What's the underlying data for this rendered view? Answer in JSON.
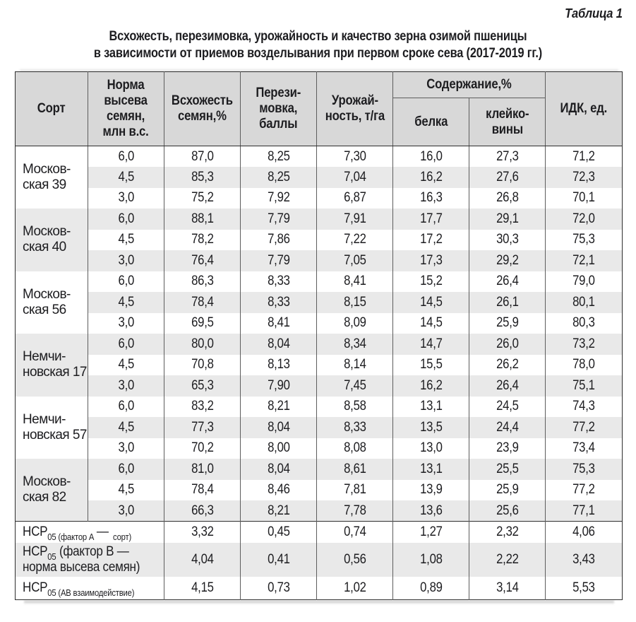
{
  "page": {
    "table_label": "Таблица 1",
    "title": "Всхожесть, перезимовка, урожайность и качество зерна озимой пшеницы\nв зависимости от приемов возделывания при первом сроке сева (2017-2019 гг.)"
  },
  "table": {
    "headers": {
      "variety": "Сорт",
      "seeding_rate": "Норма\nвысева\nсемян,\nмлн в.с.",
      "germination": "Всхожесть\nсемян,%",
      "overwintering": "Перези-\nмовка,\nбаллы",
      "yield": "Урожай-\nность, т/га",
      "content": "Содержание,%",
      "protein": "белка",
      "gluten": "клейко-\nвины",
      "idk": "ИДК, ед."
    },
    "groups": [
      {
        "variety": "Москов-\nская 39",
        "rows": [
          {
            "rate": "6,0",
            "values": [
              "87,0",
              "8,25",
              "7,30",
              "16,0",
              "27,3",
              "71,2"
            ]
          },
          {
            "rate": "4,5",
            "values": [
              "85,3",
              "8,25",
              "7,04",
              "16,2",
              "27,6",
              "72,3"
            ]
          },
          {
            "rate": "3,0",
            "values": [
              "75,2",
              "7,92",
              "6,87",
              "16,3",
              "26,8",
              "70,1"
            ]
          }
        ]
      },
      {
        "variety": "Москов-\nская 40",
        "rows": [
          {
            "rate": "6,0",
            "values": [
              "88,1",
              "7,79",
              "7,91",
              "17,7",
              "29,1",
              "72,0"
            ]
          },
          {
            "rate": "4,5",
            "values": [
              "78,2",
              "7,86",
              "7,22",
              "17,2",
              "30,3",
              "75,3"
            ]
          },
          {
            "rate": "3,0",
            "values": [
              "76,4",
              "7,79",
              "7,05",
              "17,3",
              "29,2",
              "72,1"
            ]
          }
        ]
      },
      {
        "variety": "Москов-\nская 56",
        "rows": [
          {
            "rate": "6,0",
            "values": [
              "86,3",
              "8,33",
              "8,41",
              "15,2",
              "26,4",
              "79,0"
            ]
          },
          {
            "rate": "4,5",
            "values": [
              "78,4",
              "8,33",
              "8,15",
              "14,5",
              "26,1",
              "80,1"
            ]
          },
          {
            "rate": "3,0",
            "values": [
              "69,5",
              "8,41",
              "8,09",
              "14,5",
              "25,9",
              "80,3"
            ]
          }
        ]
      },
      {
        "variety": "Немчи-\nновская 17",
        "rows": [
          {
            "rate": "6,0",
            "values": [
              "80,0",
              "8,04",
              "8,34",
              "14,7",
              "26,0",
              "73,2"
            ]
          },
          {
            "rate": "4,5",
            "values": [
              "70,8",
              "8,13",
              "8,14",
              "15,5",
              "26,2",
              "78,0"
            ]
          },
          {
            "rate": "3,0",
            "values": [
              "65,3",
              "7,90",
              "7,45",
              "16,2",
              "26,4",
              "75,1"
            ]
          }
        ]
      },
      {
        "variety": "Немчи-\nновская 57",
        "rows": [
          {
            "rate": "6,0",
            "values": [
              "83,2",
              "8,21",
              "8,58",
              "13,1",
              "24,5",
              "74,3"
            ]
          },
          {
            "rate": "4,5",
            "values": [
              "77,3",
              "8,04",
              "8,33",
              "13,5",
              "24,4",
              "77,2"
            ]
          },
          {
            "rate": "3,0",
            "values": [
              "70,2",
              "8,00",
              "8,08",
              "13,0",
              "23,9",
              "73,4"
            ]
          }
        ]
      },
      {
        "variety": "Москов-\nская 82",
        "rows": [
          {
            "rate": "6,0",
            "values": [
              "81,0",
              "8,04",
              "8,61",
              "13,1",
              "25,5",
              "75,3"
            ]
          },
          {
            "rate": "4,5",
            "values": [
              "78,4",
              "8,46",
              "7,81",
              "13,9",
              "25,9",
              "77,2"
            ]
          },
          {
            "rate": "3,0",
            "values": [
              "66,3",
              "8,21",
              "7,78",
              "13,6",
              "25,6",
              "77,1"
            ]
          }
        ]
      }
    ],
    "footer_rows": [
      {
        "label_parts": [
          {
            "text": "НСР",
            "style": "normal"
          },
          {
            "text": "05 (фактор А",
            "style": "sub"
          },
          {
            "text": "—",
            "style": "dash"
          },
          {
            "text": "сорт)",
            "style": "sub"
          }
        ],
        "values": [
          "3,32",
          "0,45",
          "0,74",
          "1,27",
          "2,32",
          "4,06"
        ]
      },
      {
        "label_parts": [
          {
            "text": "НСР",
            "style": "normal"
          },
          {
            "text": "05",
            "style": "sub"
          },
          {
            "text": " (фактор В —\nнорма высева семян)",
            "style": "normal"
          }
        ],
        "values": [
          "4,04",
          "0,41",
          "0,56",
          "1,08",
          "2,22",
          "3,43"
        ]
      },
      {
        "label_parts": [
          {
            "text": "НСР",
            "style": "normal"
          },
          {
            "text": "05 (АВ взаимодействие)",
            "style": "sub"
          }
        ],
        "values": [
          "4,15",
          "0,73",
          "1,02",
          "0,89",
          "3,14",
          "5,53"
        ]
      }
    ]
  },
  "colors": {
    "header_bg": "#d8d8d8",
    "stripe_bg": "#e9e9e9",
    "border_dark": "#2e2e2e",
    "border_mid": "#5d5d5d",
    "text": "#1d1d20"
  }
}
